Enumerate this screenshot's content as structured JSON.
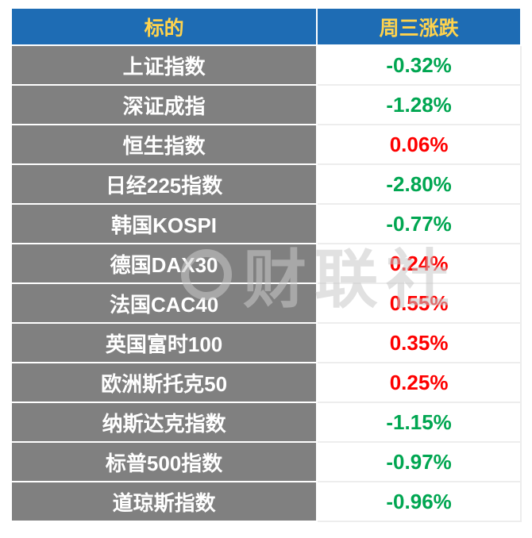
{
  "watermark": {
    "text": "财联社"
  },
  "colors": {
    "header_bg": "#1e6cb4",
    "header_fg": "#ffd34d",
    "label_bg": "#808080",
    "up": "#fe0000",
    "down": "#00a651"
  },
  "chart_data": {
    "type": "table",
    "columns": [
      "标的",
      "周三涨跌"
    ],
    "rows": [
      {
        "name": "上证指数",
        "change": "-0.32%"
      },
      {
        "name": "深证成指",
        "change": "-1.28%"
      },
      {
        "name": "恒生指数",
        "change": "0.06%"
      },
      {
        "name": "日经225指数",
        "change": "-2.80%"
      },
      {
        "name": "韩国KOSPI",
        "change": "-0.77%"
      },
      {
        "name": "德国DAX30",
        "change": "0.24%"
      },
      {
        "name": "法国CAC40",
        "change": "0.55%"
      },
      {
        "name": "英国富时100",
        "change": "0.35%"
      },
      {
        "name": "欧洲斯托克50",
        "change": "0.25%"
      },
      {
        "name": "纳斯达克指数",
        "change": "-1.15%"
      },
      {
        "name": "标普500指数",
        "change": "-0.97%"
      },
      {
        "name": "道琼斯指数",
        "change": "-0.96%"
      }
    ]
  }
}
